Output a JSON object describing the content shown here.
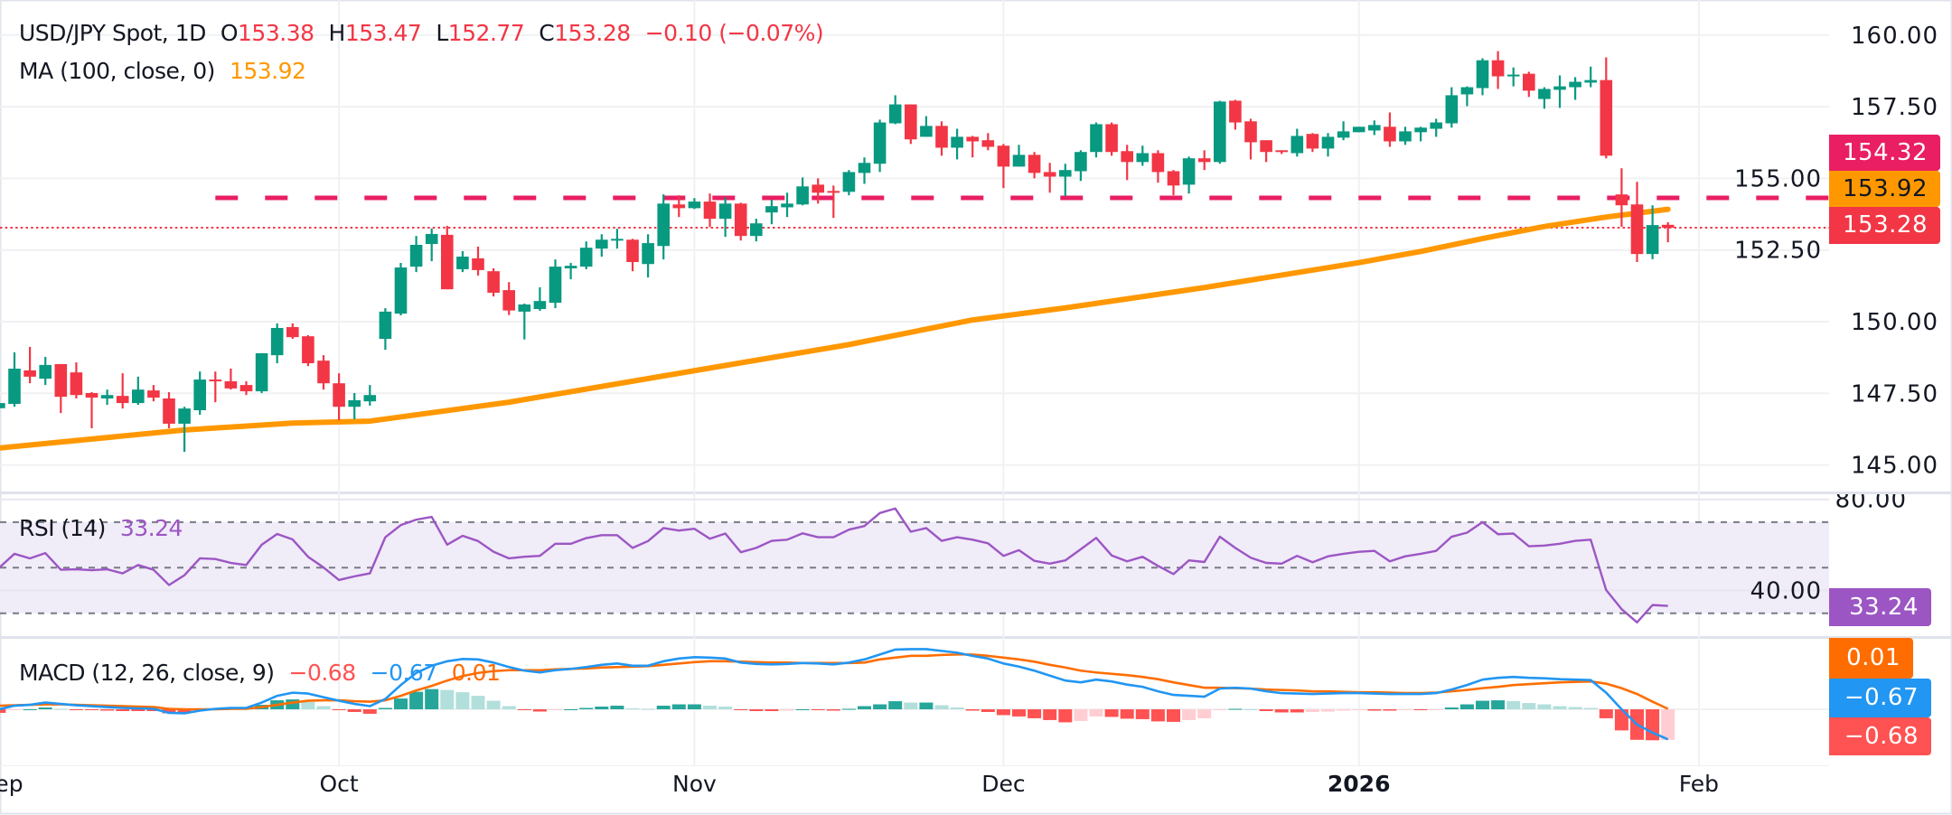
{
  "header": {
    "symbol": "USD/JPY Spot, 1D",
    "open_label": "O",
    "open": "153.38",
    "high_label": "H",
    "high": "153.47",
    "low_label": "L",
    "low": "152.77",
    "close_label": "C",
    "close": "153.28",
    "change": "−0.10 (−0.07%)",
    "ma_label": "MA (100, close, 0)",
    "ma_value": "153.92"
  },
  "rsi_legend": {
    "label": "RSI (14)",
    "value": "33.24"
  },
  "macd_legend": {
    "label": "MACD (12, 26, close, 9)",
    "hist": "−0.68",
    "macd": "−0.67",
    "signal": "0.01"
  },
  "price_tags": {
    "resistance": "154.32",
    "ma": "153.92",
    "last": "153.28"
  },
  "rsi_tag": "33.24",
  "macd_tags": {
    "signal": "0.01",
    "macd": "−0.67",
    "hist": "−0.68"
  },
  "colors": {
    "up": "#089981",
    "down": "#F23645",
    "ma": "#FF9800",
    "level": "#E91E63",
    "rsi": "#9C56C4",
    "macd": "#2196F3",
    "signal": "#FF6D00",
    "hist_up_strong": "#26A69A",
    "hist_up_weak": "#B2DFDB",
    "hist_down_strong": "#FF5252",
    "hist_down_weak": "#FFCDD2"
  },
  "chart_data": [
    {
      "type": "candlestick",
      "title": "USD/JPY Spot, 1D",
      "ylim": [
        144.3,
        161.2
      ],
      "y_ticks": [
        "160.00",
        "157.50",
        "155.00",
        "152.50",
        "150.00",
        "147.50",
        "145.00"
      ],
      "x_ticks": [
        {
          "label": "Sep",
          "index": -1
        },
        {
          "label": "Oct",
          "index": 22
        },
        {
          "label": "Nov",
          "index": 45
        },
        {
          "label": "Dec",
          "index": 65
        },
        {
          "label": "2026",
          "index": 88,
          "bold": true
        },
        {
          "label": "Feb",
          "index": 110
        }
      ],
      "grid": true,
      "ohlc": [
        [
          146.98,
          147.25,
          146.9,
          147.16
        ],
        [
          147.13,
          148.93,
          147.03,
          148.36
        ],
        [
          148.3,
          149.12,
          147.85,
          148.08
        ],
        [
          148.01,
          148.77,
          147.79,
          148.49
        ],
        [
          148.52,
          148.52,
          146.81,
          147.38
        ],
        [
          148.23,
          148.58,
          147.32,
          147.44
        ],
        [
          147.51,
          147.54,
          146.28,
          147.35
        ],
        [
          147.32,
          147.63,
          147.1,
          147.44
        ],
        [
          147.41,
          148.2,
          146.97,
          147.16
        ],
        [
          147.16,
          148.08,
          147.1,
          147.63
        ],
        [
          147.6,
          147.79,
          147.22,
          147.35
        ],
        [
          147.32,
          147.54,
          146.28,
          146.44
        ],
        [
          146.44,
          147.03,
          145.46,
          146.97
        ],
        [
          146.91,
          148.26,
          146.75,
          147.98
        ],
        [
          147.98,
          148.26,
          147.19,
          147.92
        ],
        [
          147.92,
          148.36,
          147.63,
          147.67
        ],
        [
          147.79,
          147.92,
          147.44,
          147.57
        ],
        [
          147.57,
          148.9,
          147.51,
          148.9
        ],
        [
          148.83,
          149.94,
          148.55,
          149.78
        ],
        [
          149.81,
          149.94,
          149.4,
          149.46
        ],
        [
          149.49,
          149.53,
          148.45,
          148.55
        ],
        [
          148.64,
          148.83,
          147.63,
          147.85
        ],
        [
          147.85,
          148.2,
          146.56,
          147.03
        ],
        [
          147.03,
          147.51,
          146.59,
          147.26
        ],
        [
          147.22,
          147.79,
          147.07,
          147.44
        ],
        [
          149.4,
          150.47,
          149.02,
          150.35
        ],
        [
          150.28,
          152.05,
          150.22,
          151.89
        ],
        [
          151.92,
          152.99,
          151.73,
          152.68
        ],
        [
          152.71,
          153.25,
          152.11,
          153.06
        ],
        [
          153.03,
          153.34,
          151.13,
          151.13
        ],
        [
          151.83,
          152.46,
          151.73,
          152.27
        ],
        [
          152.21,
          152.62,
          151.61,
          151.8
        ],
        [
          151.76,
          151.86,
          150.88,
          151.01
        ],
        [
          151.1,
          151.38,
          150.23,
          150.39
        ],
        [
          150.35,
          150.63,
          149.38,
          150.6
        ],
        [
          150.44,
          151.2,
          150.38,
          150.72
        ],
        [
          150.66,
          152.17,
          150.47,
          151.92
        ],
        [
          151.86,
          152.05,
          151.48,
          151.95
        ],
        [
          151.92,
          152.8,
          151.83,
          152.58
        ],
        [
          152.55,
          153.05,
          152.27,
          152.86
        ],
        [
          152.86,
          153.24,
          152.55,
          152.89
        ],
        [
          152.86,
          152.89,
          151.76,
          152.08
        ],
        [
          152.01,
          153.05,
          151.54,
          152.74
        ],
        [
          152.64,
          154.44,
          152.17,
          154.12
        ],
        [
          154.09,
          154.41,
          153.65,
          153.96
        ],
        [
          153.96,
          154.31,
          153.93,
          154.19
        ],
        [
          154.19,
          154.47,
          153.3,
          153.59
        ],
        [
          153.59,
          154.34,
          152.96,
          154.12
        ],
        [
          154.12,
          154.15,
          152.83,
          152.99
        ],
        [
          152.99,
          153.59,
          152.8,
          153.43
        ],
        [
          153.81,
          154.25,
          153.4,
          154.03
        ],
        [
          153.99,
          154.5,
          153.65,
          154.12
        ],
        [
          154.09,
          155.03,
          154.06,
          154.72
        ],
        [
          154.78,
          155.0,
          154.12,
          154.5
        ],
        [
          154.56,
          154.75,
          153.62,
          154.5
        ],
        [
          154.53,
          155.29,
          154.41,
          155.22
        ],
        [
          155.19,
          155.73,
          154.81,
          155.54
        ],
        [
          155.51,
          157.05,
          155.22,
          156.95
        ],
        [
          156.92,
          157.9,
          156.89,
          157.58
        ],
        [
          157.58,
          157.58,
          156.2,
          156.36
        ],
        [
          156.45,
          157.17,
          156.45,
          156.83
        ],
        [
          156.83,
          156.99,
          155.79,
          156.07
        ],
        [
          156.07,
          156.73,
          155.66,
          156.45
        ],
        [
          156.45,
          156.48,
          155.73,
          156.29
        ],
        [
          156.33,
          156.58,
          155.98,
          156.1
        ],
        [
          156.14,
          156.2,
          154.66,
          155.41
        ],
        [
          155.41,
          156.17,
          155.41,
          155.82
        ],
        [
          155.82,
          155.92,
          155.0,
          155.19
        ],
        [
          155.22,
          155.54,
          154.5,
          155.06
        ],
        [
          155.06,
          155.51,
          154.38,
          155.29
        ],
        [
          155.25,
          155.98,
          154.91,
          155.92
        ],
        [
          155.92,
          156.95,
          155.73,
          156.89
        ],
        [
          156.89,
          156.95,
          155.79,
          155.92
        ],
        [
          155.95,
          156.17,
          154.94,
          155.57
        ],
        [
          155.57,
          156.14,
          155.44,
          155.88
        ],
        [
          155.88,
          155.98,
          154.85,
          155.22
        ],
        [
          155.25,
          155.29,
          154.41,
          154.75
        ],
        [
          154.78,
          155.76,
          154.47,
          155.7
        ],
        [
          155.7,
          155.98,
          155.29,
          155.57
        ],
        [
          155.57,
          157.71,
          155.51,
          157.68
        ],
        [
          157.71,
          157.74,
          156.7,
          156.95
        ],
        [
          156.99,
          157.08,
          155.66,
          156.26
        ],
        [
          156.33,
          156.33,
          155.57,
          155.92
        ],
        [
          155.98,
          155.98,
          155.85,
          155.92
        ],
        [
          155.88,
          156.73,
          155.76,
          156.48
        ],
        [
          156.55,
          156.58,
          155.92,
          156.04
        ],
        [
          156.04,
          156.58,
          155.76,
          156.45
        ],
        [
          156.42,
          156.99,
          156.33,
          156.64
        ],
        [
          156.61,
          156.8,
          156.61,
          156.8
        ],
        [
          156.67,
          157.02,
          156.51,
          156.86
        ],
        [
          156.8,
          157.3,
          156.1,
          156.29
        ],
        [
          156.29,
          156.8,
          156.17,
          156.64
        ],
        [
          156.61,
          156.8,
          156.29,
          156.77
        ],
        [
          156.73,
          157.08,
          156.45,
          156.95
        ],
        [
          156.92,
          158.18,
          156.77,
          157.9
        ],
        [
          157.93,
          158.21,
          157.52,
          158.18
        ],
        [
          158.15,
          159.19,
          157.9,
          159.12
        ],
        [
          159.12,
          159.44,
          158.12,
          158.56
        ],
        [
          158.56,
          158.87,
          158.21,
          158.62
        ],
        [
          158.65,
          158.72,
          157.84,
          158.06
        ],
        [
          157.77,
          158.18,
          157.43,
          158.12
        ],
        [
          158.09,
          158.59,
          157.46,
          158.21
        ],
        [
          158.18,
          158.53,
          157.74,
          158.37
        ],
        [
          158.34,
          158.9,
          158.18,
          158.43
        ],
        [
          158.43,
          159.22,
          155.7,
          155.79
        ],
        [
          154.44,
          155.35,
          153.31,
          154.06
        ],
        [
          154.09,
          154.88,
          152.08,
          152.36
        ],
        [
          152.36,
          154.06,
          152.18,
          153.37
        ],
        [
          153.38,
          153.47,
          152.77,
          153.28
        ]
      ],
      "ma_100": [
        [
          0,
          145.59
        ],
        [
          12,
          146.22
        ],
        [
          19,
          146.46
        ],
        [
          24,
          146.53
        ],
        [
          33,
          147.19
        ],
        [
          45,
          148.29
        ],
        [
          55,
          149.2
        ],
        [
          63,
          150.06
        ],
        [
          69,
          150.48
        ],
        [
          78,
          151.19
        ],
        [
          88,
          152.06
        ],
        [
          92,
          152.45
        ],
        [
          96,
          152.9
        ],
        [
          100,
          153.32
        ],
        [
          104,
          153.65
        ],
        [
          108,
          153.92
        ]
      ],
      "horizontal_level": 154.32,
      "horizontal_level_start_index": 14,
      "last_price": 153.28
    },
    {
      "type": "line",
      "title": "RSI (14)",
      "ylim": [
        22,
        83
      ],
      "y_ticks": [
        "80.00",
        "40.00"
      ],
      "bands": [
        70,
        50,
        30
      ],
      "values": [
        49.9,
        56.1,
        54.1,
        56.4,
        49.1,
        49.3,
        48.9,
        49.3,
        47.5,
        51.2,
        49.1,
        42.4,
        46.7,
        54.1,
        53.8,
        52.1,
        51.2,
        60.1,
        64.8,
        62.4,
        54.8,
        50.1,
        44.6,
        46.2,
        47.5,
        63.4,
        68.7,
        71.1,
        72.3,
        60.1,
        64.0,
        61.7,
        57.0,
        54.1,
        54.8,
        55.2,
        60.5,
        60.5,
        63.0,
        64.3,
        64.3,
        58.7,
        61.7,
        67.4,
        66.3,
        67.1,
        62.7,
        65.0,
        56.8,
        58.7,
        61.8,
        62.3,
        65.1,
        63.4,
        63.4,
        66.7,
        68.3,
        74.0,
        76.0,
        65.8,
        67.4,
        61.8,
        63.4,
        62.3,
        60.7,
        55.2,
        57.7,
        53.0,
        51.8,
        53.2,
        58.1,
        63.1,
        55.4,
        52.8,
        54.8,
        50.8,
        47.2,
        53.2,
        52.5,
        63.6,
        58.7,
        54.4,
        52.1,
        51.8,
        55.2,
        52.4,
        55.0,
        56.1,
        57.0,
        57.4,
        52.8,
        55.0,
        56.1,
        57.4,
        63.6,
        65.4,
        70.0,
        64.7,
        65.0,
        59.4,
        59.7,
        60.5,
        61.8,
        62.3,
        40.2,
        31.8,
        26.0,
        33.6,
        33.24
      ]
    },
    {
      "type": "line+bar",
      "title": "MACD (12, 26, close, 9)",
      "macd": [
        0,
        0.08,
        0.1,
        0.15,
        0.12,
        0.09,
        0.07,
        0.05,
        0.03,
        0.02,
        0.01,
        -0.08,
        -0.09,
        -0.03,
        0.01,
        0.03,
        0.03,
        0.15,
        0.3,
        0.37,
        0.35,
        0.27,
        0.19,
        0.12,
        0.07,
        0.23,
        0.54,
        0.81,
        0.97,
        1.07,
        1.12,
        1.11,
        1.04,
        0.94,
        0.86,
        0.82,
        0.87,
        0.9,
        0.94,
        0.99,
        1.02,
        0.97,
        0.97,
        1.07,
        1.13,
        1.16,
        1.15,
        1.13,
        1.04,
        1.01,
        1.0,
        1.01,
        1.03,
        1.02,
        1.0,
        1.04,
        1.11,
        1.22,
        1.33,
        1.34,
        1.34,
        1.3,
        1.26,
        1.19,
        1.13,
        1.02,
        0.95,
        0.86,
        0.75,
        0.64,
        0.6,
        0.66,
        0.62,
        0.55,
        0.5,
        0.4,
        0.32,
        0.3,
        0.28,
        0.46,
        0.48,
        0.46,
        0.4,
        0.36,
        0.35,
        0.34,
        0.35,
        0.36,
        0.36,
        0.35,
        0.34,
        0.34,
        0.34,
        0.36,
        0.44,
        0.54,
        0.66,
        0.7,
        0.72,
        0.7,
        0.69,
        0.67,
        0.66,
        0.65,
        0.37,
        0.0,
        -0.34,
        -0.52,
        -0.67
      ],
      "signal": [
        0.08,
        0.09,
        0.1,
        0.11,
        0.11,
        0.1,
        0.09,
        0.08,
        0.07,
        0.06,
        0.05,
        0.01,
        0,
        0,
        0,
        0.01,
        0.01,
        0.05,
        0.1,
        0.15,
        0.19,
        0.2,
        0.2,
        0.18,
        0.17,
        0.2,
        0.3,
        0.42,
        0.52,
        0.64,
        0.74,
        0.81,
        0.85,
        0.87,
        0.87,
        0.87,
        0.89,
        0.9,
        0.91,
        0.93,
        0.94,
        0.95,
        0.96,
        0.99,
        1.02,
        1.05,
        1.07,
        1.07,
        1.06,
        1.05,
        1.04,
        1.04,
        1.03,
        1.03,
        1.03,
        1.03,
        1.04,
        1.11,
        1.15,
        1.19,
        1.19,
        1.21,
        1.22,
        1.22,
        1.19,
        1.15,
        1.11,
        1.06,
        0.99,
        0.93,
        0.86,
        0.82,
        0.79,
        0.76,
        0.72,
        0.67,
        0.6,
        0.54,
        0.48,
        0.48,
        0.47,
        0.46,
        0.44,
        0.43,
        0.42,
        0.4,
        0.4,
        0.39,
        0.38,
        0.38,
        0.37,
        0.36,
        0.36,
        0.37,
        0.4,
        0.43,
        0.47,
        0.5,
        0.54,
        0.56,
        0.58,
        0.6,
        0.61,
        0.62,
        0.57,
        0.47,
        0.34,
        0.17,
        0.01
      ]
    }
  ]
}
